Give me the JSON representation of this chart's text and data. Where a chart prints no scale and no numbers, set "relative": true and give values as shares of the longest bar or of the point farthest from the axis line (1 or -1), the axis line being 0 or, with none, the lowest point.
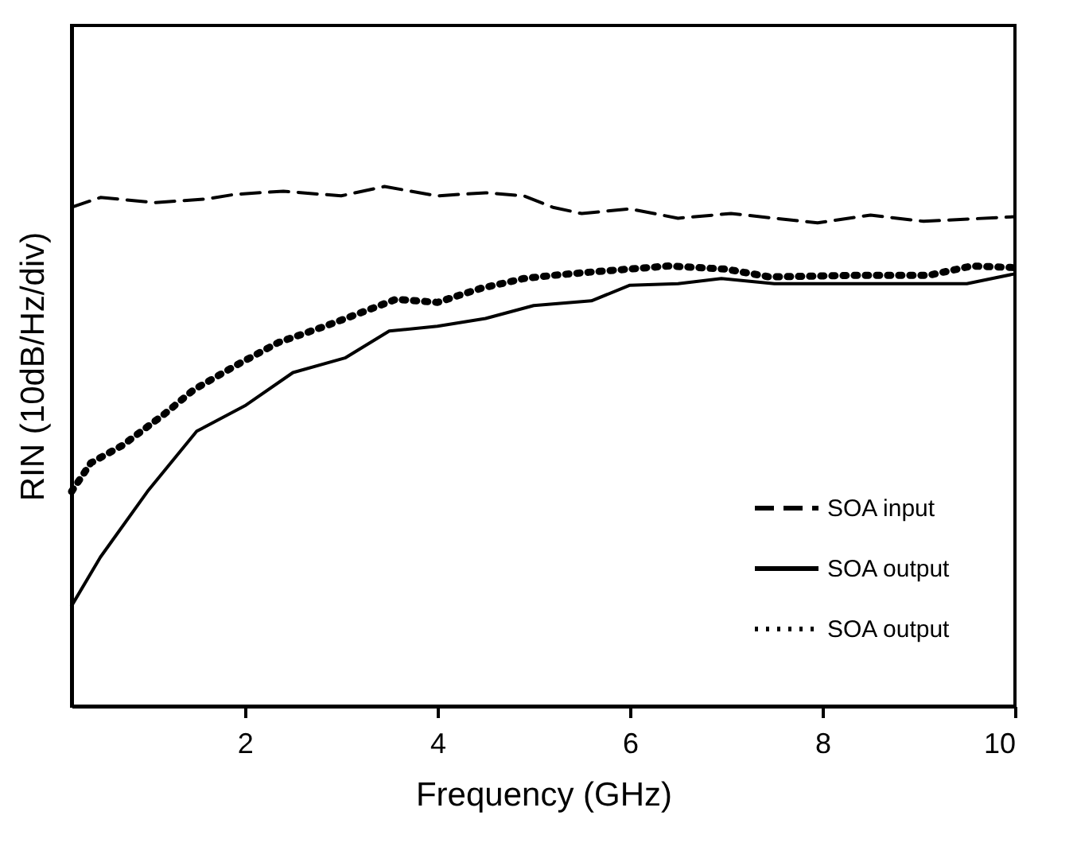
{
  "chart_data": {
    "type": "line",
    "xlabel": "Frequency (GHz)",
    "ylabel": "RIN (10dB/Hz/div)",
    "relative": true,
    "xlim": [
      0.2,
      10
    ],
    "xticks": [
      2,
      4,
      6,
      8,
      10
    ],
    "grid": false,
    "legend": "bottom right",
    "marker": "none",
    "series": [
      {
        "name": "SOA input",
        "color": "#000000",
        "line_style": "dashed",
        "x": [
          0.2,
          0.5,
          1.06,
          1.6,
          1.9,
          2.4,
          3.0,
          3.45,
          4.0,
          4.5,
          4.9,
          5.2,
          5.5,
          6.0,
          6.5,
          7.05,
          7.95,
          8.5,
          9.05,
          10
        ],
        "values": [
          0.96,
          0.979,
          0.969,
          0.976,
          0.985,
          0.991,
          0.982,
          1.0,
          0.982,
          0.988,
          0.982,
          0.96,
          0.948,
          0.957,
          0.939,
          0.948,
          0.93,
          0.945,
          0.933,
          0.942
        ]
      },
      {
        "name": "SOA output",
        "color": "#000000",
        "line_style": "solid",
        "x": [
          0.2,
          0.5,
          1.0,
          1.5,
          2.0,
          2.5,
          3.04,
          3.5,
          4.0,
          4.5,
          5.0,
          5.6,
          6.0,
          6.5,
          6.95,
          7.5,
          8.6,
          9.5,
          10
        ],
        "values": [
          0.193,
          0.287,
          0.416,
          0.529,
          0.578,
          0.642,
          0.67,
          0.722,
          0.731,
          0.746,
          0.771,
          0.78,
          0.81,
          0.813,
          0.823,
          0.813,
          0.813,
          0.813,
          0.832
        ]
      },
      {
        "name": "SOA output",
        "color": "#000000",
        "line_style": "dotted",
        "x": [
          0.2,
          0.4,
          0.73,
          1.17,
          1.47,
          1.92,
          2.35,
          2.83,
          3.26,
          3.57,
          4.0,
          4.45,
          4.9,
          5.2,
          5.57,
          6.4,
          7.0,
          7.45,
          8.33,
          9.1,
          9.55,
          10
        ],
        "values": [
          0.413,
          0.468,
          0.502,
          0.563,
          0.609,
          0.657,
          0.7,
          0.731,
          0.761,
          0.783,
          0.777,
          0.804,
          0.823,
          0.829,
          0.835,
          0.847,
          0.841,
          0.826,
          0.829,
          0.829,
          0.847,
          0.844
        ]
      }
    ]
  }
}
